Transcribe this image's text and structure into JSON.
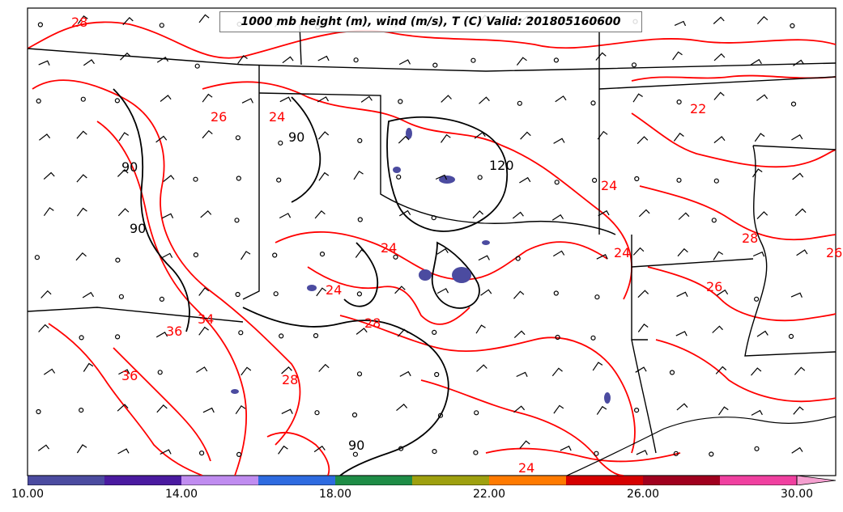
{
  "title": "1000 mb height (m), wind (m/s), T (C) Valid: 201805160600",
  "colors": {
    "temperature_contour": "#ff0000",
    "height_contour": "#000000",
    "state_border": "#000000"
  },
  "colorbar": {
    "min": 10.0,
    "max": 31.0,
    "bins": [
      {
        "from": 10,
        "to": 12,
        "color": "#4b4ba0"
      },
      {
        "from": 12,
        "to": 14,
        "color": "#4a1aa0"
      },
      {
        "from": 14,
        "to": 16,
        "color": "#c08cf0"
      },
      {
        "from": 16,
        "to": 18,
        "color": "#2e6be0"
      },
      {
        "from": 18,
        "to": 20,
        "color": "#1e8c46"
      },
      {
        "from": 20,
        "to": 22,
        "color": "#9ea00f"
      },
      {
        "from": 22,
        "to": 24,
        "color": "#ff7a00"
      },
      {
        "from": 24,
        "to": 26,
        "color": "#d60000"
      },
      {
        "from": 26,
        "to": 28,
        "color": "#a0001e"
      },
      {
        "from": 28,
        "to": 30,
        "color": "#f040a0"
      }
    ],
    "extend_color": "#f5a0d0",
    "tick_labels": [
      "10.00",
      "14.00",
      "18.00",
      "22.00",
      "26.00",
      "30.00"
    ],
    "tick_values": [
      10,
      14,
      18,
      22,
      26,
      30
    ]
  },
  "temperature_labels": [
    "28",
    "26",
    "24",
    "22",
    "24",
    "24",
    "28",
    "36",
    "34",
    "36",
    "28",
    "24",
    "26",
    "24",
    "28",
    "26",
    "24"
  ],
  "height_labels": [
    "90",
    "120",
    "90",
    "90",
    "90"
  ]
}
